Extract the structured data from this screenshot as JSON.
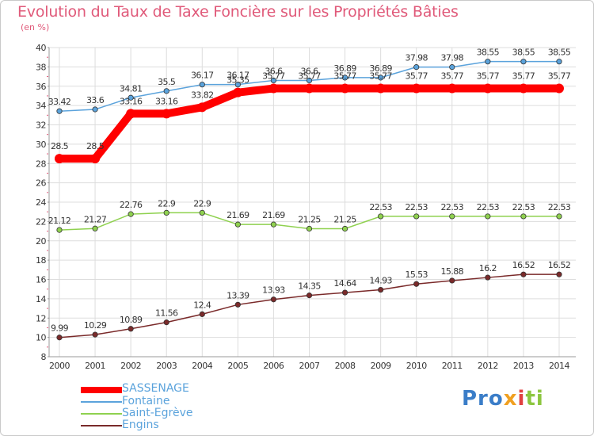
{
  "chart_data": {
    "type": "line",
    "title": "Evolution du Taux de Taxe Foncière sur les Propriétés Bâties",
    "subtitle": "(en %)",
    "xlabel": "",
    "ylabel": "(en %)",
    "x": [
      "2000",
      "2001",
      "2002",
      "2003",
      "2004",
      "2005",
      "2006",
      "2007",
      "2008",
      "2009",
      "2010",
      "2011",
      "2012",
      "2013",
      "2014"
    ],
    "ylim": [
      8,
      40
    ],
    "yticks": [
      8,
      10,
      12,
      14,
      16,
      18,
      20,
      22,
      24,
      26,
      28,
      30,
      32,
      34,
      36,
      38,
      40
    ],
    "grid": true,
    "legend_position": "bottom-left",
    "series": [
      {
        "name": "SASSENAGE",
        "color": "#ff0000",
        "emphasis": true,
        "values": [
          28.5,
          28.5,
          33.16,
          33.16,
          33.82,
          35.35,
          35.77,
          35.77,
          35.77,
          35.77,
          35.77,
          35.77,
          35.77,
          35.77,
          35.77
        ],
        "labels": [
          "28.5",
          "28.5",
          "33.16",
          "33.16",
          "33.82",
          "35.35",
          "35.77",
          "35.77",
          "35.77",
          "35.77",
          "35.77",
          "35.77",
          "35.77",
          "35.77",
          "35.77"
        ]
      },
      {
        "name": "Fontaine",
        "color": "#5ba3dc",
        "values": [
          33.42,
          33.6,
          34.81,
          35.5,
          36.17,
          36.17,
          36.6,
          36.6,
          36.89,
          36.89,
          37.98,
          37.98,
          38.55,
          38.55,
          38.55
        ],
        "labels": [
          "33.42",
          "33.6",
          "34.81",
          "35.5",
          "36.17",
          "36.17",
          "36.6",
          "36.6",
          "36.89",
          "36.89",
          "37.98",
          "37.98",
          "38.55",
          "38.55",
          "38.55"
        ]
      },
      {
        "name": "Saint-Egrève",
        "color": "#8fd14f",
        "values": [
          21.12,
          21.27,
          22.76,
          22.9,
          22.9,
          21.69,
          21.69,
          21.25,
          21.25,
          22.53,
          22.53,
          22.53,
          22.53,
          22.53,
          22.53
        ],
        "labels": [
          "21.12",
          "21.27",
          "22.76",
          "22.9",
          "22.9",
          "21.69",
          "21.69",
          "21.25",
          "21.25",
          "22.53",
          "22.53",
          "22.53",
          "22.53",
          "22.53",
          "22.53"
        ]
      },
      {
        "name": "Engins",
        "color": "#7a2a2a",
        "values": [
          9.99,
          10.29,
          10.89,
          11.56,
          12.4,
          13.39,
          13.93,
          14.35,
          14.64,
          14.93,
          15.53,
          15.88,
          16.2,
          16.52,
          16.52
        ],
        "labels": [
          "9.99",
          "10.29",
          "10.89",
          "11.56",
          "12.4",
          "13.39",
          "13.93",
          "14.35",
          "14.64",
          "14.93",
          "15.53",
          "15.88",
          "16.2",
          "16.52",
          "16.52"
        ]
      }
    ]
  },
  "logo": {
    "p1": "Pro",
    "p2": "x",
    "p3": "i",
    "p4": "ti"
  },
  "colors": {
    "title": "#e05a7a",
    "grid": "#dddddd",
    "axis": "#999999"
  }
}
